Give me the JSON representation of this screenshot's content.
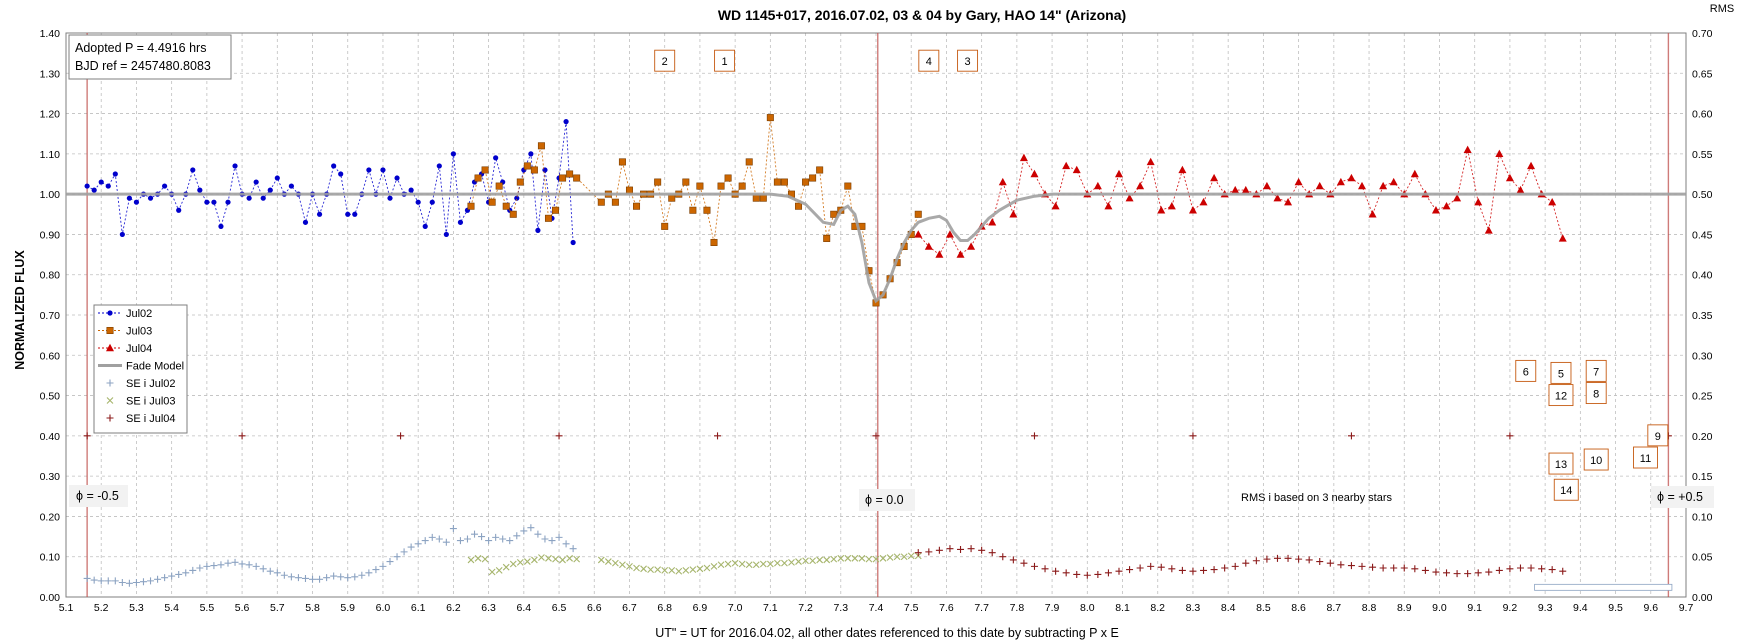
{
  "chart_data": {
    "type": "scatter",
    "title": "WD 1145+017, 2016.07.02, 03 & 04 by Gary, HAO 14\" (Arizona)",
    "xlabel": "UT\" = UT for 2016.04.02, all other dates referenced to this date by subtracting P x E",
    "ylabel": "NORMALIZED FLUX",
    "y2label": "RMS",
    "xlim": [
      5.1,
      9.7
    ],
    "ylim": [
      0,
      1.4
    ],
    "y2lim": [
      0,
      0.7
    ],
    "xticks": [
      "5.1",
      "5.2",
      "5.3",
      "5.4",
      "5.5",
      "5.6",
      "5.7",
      "5.8",
      "5.9",
      "6.0",
      "6.1",
      "6.2",
      "6.3",
      "6.4",
      "6.5",
      "6.6",
      "6.7",
      "6.8",
      "6.9",
      "7.0",
      "7.1",
      "7.2",
      "7.3",
      "7.4",
      "7.5",
      "7.6",
      "7.7",
      "7.8",
      "7.9",
      "8.0",
      "8.1",
      "8.2",
      "8.3",
      "8.4",
      "8.5",
      "8.6",
      "8.7",
      "8.8",
      "8.9",
      "9.0",
      "9.1",
      "9.2",
      "9.3",
      "9.4",
      "9.5",
      "9.6",
      "9.7"
    ],
    "yticks": [
      "0.00",
      "0.10",
      "0.20",
      "0.30",
      "0.40",
      "0.50",
      "0.60",
      "0.70",
      "0.80",
      "0.90",
      "1.00",
      "1.10",
      "1.20",
      "1.30",
      "1.40"
    ],
    "y2ticks": [
      "0.00",
      "0.05",
      "0.10",
      "0.15",
      "0.20",
      "0.25",
      "0.30",
      "0.35",
      "0.40",
      "0.45",
      "0.50",
      "0.55",
      "0.60",
      "0.65",
      "0.70"
    ],
    "grid": true,
    "legend_position": "left",
    "info_box": [
      "Adopted P = 4.4916 hrs",
      "BJD ref = 2457480.8083"
    ],
    "phase_labels": [
      {
        "x": 5.16,
        "text": "ϕ = -0.5"
      },
      {
        "x": 7.405,
        "text": "ϕ = 0.0"
      },
      {
        "x": 9.65,
        "text": "ϕ = +0.5"
      }
    ],
    "rms_note": "RMS i based on 3 nearby stars",
    "dip_labels": [
      {
        "text": "2",
        "x": 6.8,
        "y": 1.33
      },
      {
        "text": "1",
        "x": 6.97,
        "y": 1.33
      },
      {
        "text": "4",
        "x": 7.55,
        "y": 1.33
      },
      {
        "text": "3",
        "x": 7.66,
        "y": 1.33
      },
      {
        "text": "6",
        "x": 9.245,
        "y": 0.56
      },
      {
        "text": "5",
        "x": 9.345,
        "y": 0.555
      },
      {
        "text": "7",
        "x": 9.445,
        "y": 0.56
      },
      {
        "text": "12",
        "x": 9.345,
        "y": 0.5
      },
      {
        "text": "8",
        "x": 9.445,
        "y": 0.505
      },
      {
        "text": "9",
        "x": 9.62,
        "y": 0.4
      },
      {
        "text": "11",
        "x": 9.585,
        "y": 0.345
      },
      {
        "text": "10",
        "x": 9.445,
        "y": 0.34
      },
      {
        "text": "13",
        "x": 9.345,
        "y": 0.33
      },
      {
        "text": "14",
        "x": 9.36,
        "y": 0.265
      }
    ],
    "series": [
      {
        "name": "Jul02",
        "color": "#0000cc",
        "marker": "dot",
        "x": [
          5.16,
          5.18,
          5.2,
          5.22,
          5.24,
          5.26,
          5.28,
          5.3,
          5.32,
          5.34,
          5.36,
          5.38,
          5.4,
          5.42,
          5.44,
          5.46,
          5.48,
          5.5,
          5.52,
          5.54,
          5.56,
          5.58,
          5.6,
          5.62,
          5.64,
          5.66,
          5.68,
          5.7,
          5.72,
          5.74,
          5.76,
          5.78,
          5.8,
          5.82,
          5.84,
          5.86,
          5.88,
          5.9,
          5.92,
          5.94,
          5.96,
          5.98,
          6.0,
          6.02,
          6.04,
          6.06,
          6.08,
          6.1,
          6.12,
          6.14,
          6.16,
          6.18,
          6.2,
          6.22,
          6.24,
          6.26,
          6.28,
          6.3,
          6.32,
          6.34,
          6.36,
          6.38,
          6.4,
          6.42,
          6.44,
          6.46,
          6.48,
          6.5,
          6.52,
          6.54
        ],
        "y": [
          1.02,
          1.01,
          1.03,
          1.02,
          1.05,
          0.9,
          0.99,
          0.98,
          1.0,
          0.99,
          1.0,
          1.02,
          1.0,
          0.96,
          1.0,
          1.06,
          1.01,
          0.98,
          0.98,
          0.92,
          0.98,
          1.07,
          1.0,
          0.99,
          1.03,
          0.99,
          1.01,
          1.04,
          1.0,
          1.02,
          1.0,
          0.93,
          1.0,
          0.95,
          1.0,
          1.07,
          1.05,
          0.95,
          0.95,
          1.0,
          1.06,
          1.0,
          1.06,
          0.99,
          1.04,
          1.0,
          1.01,
          0.98,
          0.92,
          0.98,
          1.07,
          0.9,
          1.1,
          0.93,
          0.96,
          1.03,
          1.05,
          0.98,
          1.09,
          1.03,
          0.96,
          0.99,
          1.06,
          1.1,
          0.91,
          1.06,
          0.94,
          1.04,
          1.18,
          0.88
        ]
      },
      {
        "name": "Jul03",
        "color": "#cc6600",
        "marker": "square",
        "x": [
          6.25,
          6.27,
          6.29,
          6.31,
          6.33,
          6.35,
          6.37,
          6.39,
          6.41,
          6.43,
          6.45,
          6.47,
          6.49,
          6.51,
          6.53,
          6.55,
          6.62,
          6.64,
          6.66,
          6.68,
          6.7,
          6.72,
          6.74,
          6.76,
          6.78,
          6.8,
          6.82,
          6.84,
          6.86,
          6.88,
          6.9,
          6.92,
          6.94,
          6.96,
          6.98,
          7.0,
          7.02,
          7.04,
          7.06,
          7.08,
          7.1,
          7.12,
          7.14,
          7.16,
          7.18,
          7.2,
          7.22,
          7.24,
          7.26,
          7.28,
          7.3,
          7.32,
          7.34,
          7.36,
          7.38,
          7.4,
          7.42,
          7.44,
          7.46,
          7.48,
          7.5,
          7.52
        ],
        "y": [
          0.97,
          1.04,
          1.06,
          0.98,
          1.02,
          0.97,
          0.95,
          1.03,
          1.07,
          1.06,
          1.12,
          0.94,
          0.96,
          1.04,
          1.05,
          1.04,
          0.98,
          1.0,
          0.98,
          1.08,
          1.01,
          0.97,
          1.0,
          1.0,
          1.03,
          0.92,
          0.99,
          1.0,
          1.03,
          0.96,
          1.02,
          0.96,
          0.88,
          1.02,
          1.04,
          1.0,
          1.02,
          1.08,
          0.99,
          0.99,
          1.19,
          1.03,
          1.03,
          1.0,
          0.97,
          1.03,
          1.04,
          1.06,
          0.89,
          0.95,
          0.96,
          1.02,
          0.92,
          0.92,
          0.81,
          0.73,
          0.75,
          0.79,
          0.83,
          0.87,
          0.9,
          0.95
        ]
      },
      {
        "name": "Jul04",
        "color": "#cc0000",
        "marker": "triangle",
        "x": [
          7.52,
          7.55,
          7.58,
          7.61,
          7.64,
          7.67,
          7.7,
          7.73,
          7.76,
          7.79,
          7.82,
          7.85,
          7.88,
          7.91,
          7.94,
          7.97,
          8.0,
          8.03,
          8.06,
          8.09,
          8.12,
          8.15,
          8.18,
          8.21,
          8.24,
          8.27,
          8.3,
          8.33,
          8.36,
          8.39,
          8.42,
          8.45,
          8.48,
          8.51,
          8.54,
          8.57,
          8.6,
          8.63,
          8.66,
          8.69,
          8.72,
          8.75,
          8.78,
          8.81,
          8.84,
          8.87,
          8.9,
          8.93,
          8.96,
          8.99,
          9.02,
          9.05,
          9.08,
          9.11,
          9.14,
          9.17,
          9.2,
          9.23,
          9.26,
          9.29,
          9.32,
          9.35
        ],
        "y": [
          0.9,
          0.87,
          0.85,
          0.9,
          0.85,
          0.87,
          0.92,
          0.93,
          1.03,
          0.95,
          1.09,
          1.05,
          1.0,
          0.97,
          1.07,
          1.06,
          1.0,
          1.02,
          0.97,
          1.05,
          0.99,
          1.02,
          1.08,
          0.96,
          0.97,
          1.06,
          0.96,
          0.98,
          1.04,
          1.0,
          1.01,
          1.01,
          1.0,
          1.02,
          0.99,
          0.98,
          1.03,
          1.0,
          1.02,
          1.0,
          1.03,
          1.04,
          1.02,
          0.95,
          1.02,
          1.03,
          1.0,
          1.05,
          1.0,
          0.96,
          0.97,
          0.99,
          1.11,
          0.98,
          0.91,
          1.1,
          1.04,
          1.01,
          1.07,
          1.0,
          0.98,
          0.89
        ]
      },
      {
        "name": "Fade Model",
        "color": "#a0a0a0",
        "marker": "line",
        "x": [
          5.1,
          7.0,
          7.1,
          7.15,
          7.2,
          7.25,
          7.28,
          7.3,
          7.32,
          7.34,
          7.36,
          7.38,
          7.4,
          7.42,
          7.44,
          7.46,
          7.48,
          7.5,
          7.52,
          7.55,
          7.58,
          7.6,
          7.62,
          7.64,
          7.66,
          7.68,
          7.7,
          7.72,
          7.75,
          7.8,
          7.85,
          7.9,
          8.0,
          9.7
        ],
        "y": [
          1.0,
          1.0,
          1.0,
          0.995,
          0.975,
          0.93,
          0.925,
          0.96,
          0.97,
          0.95,
          0.88,
          0.78,
          0.735,
          0.75,
          0.79,
          0.84,
          0.88,
          0.91,
          0.93,
          0.94,
          0.945,
          0.935,
          0.905,
          0.885,
          0.885,
          0.9,
          0.92,
          0.94,
          0.96,
          0.985,
          0.995,
          1.0,
          1.0,
          1.0
        ]
      },
      {
        "name": "SE i Jul02",
        "color": "#8ca3c2",
        "marker": "plus",
        "axis": "y2",
        "x": [
          5.16,
          5.18,
          5.2,
          5.22,
          5.24,
          5.26,
          5.28,
          5.3,
          5.32,
          5.34,
          5.36,
          5.38,
          5.4,
          5.42,
          5.44,
          5.46,
          5.48,
          5.5,
          5.52,
          5.54,
          5.56,
          5.58,
          5.6,
          5.62,
          5.64,
          5.66,
          5.68,
          5.7,
          5.72,
          5.74,
          5.76,
          5.78,
          5.8,
          5.82,
          5.84,
          5.86,
          5.88,
          5.9,
          5.92,
          5.94,
          5.96,
          5.98,
          6.0,
          6.02,
          6.04,
          6.06,
          6.08,
          6.1,
          6.12,
          6.14,
          6.16,
          6.18,
          6.2,
          6.22,
          6.24,
          6.26,
          6.28,
          6.3,
          6.32,
          6.34,
          6.36,
          6.38,
          6.4,
          6.42,
          6.44,
          6.46,
          6.48,
          6.5,
          6.52,
          6.54
        ],
        "y": [
          0.023,
          0.021,
          0.02,
          0.02,
          0.02,
          0.018,
          0.017,
          0.018,
          0.019,
          0.02,
          0.022,
          0.024,
          0.026,
          0.028,
          0.03,
          0.033,
          0.036,
          0.038,
          0.039,
          0.04,
          0.042,
          0.043,
          0.041,
          0.04,
          0.038,
          0.035,
          0.032,
          0.03,
          0.027,
          0.025,
          0.024,
          0.023,
          0.022,
          0.022,
          0.024,
          0.026,
          0.025,
          0.024,
          0.025,
          0.027,
          0.03,
          0.034,
          0.038,
          0.044,
          0.05,
          0.056,
          0.062,
          0.066,
          0.07,
          0.074,
          0.072,
          0.068,
          0.085,
          0.07,
          0.072,
          0.078,
          0.075,
          0.07,
          0.074,
          0.072,
          0.07,
          0.076,
          0.082,
          0.086,
          0.078,
          0.072,
          0.07,
          0.074,
          0.066,
          0.06
        ]
      },
      {
        "name": "SE i Jul03",
        "color": "#a6b56c",
        "marker": "cross",
        "axis": "y2",
        "x": [
          6.25,
          6.27,
          6.29,
          6.31,
          6.33,
          6.35,
          6.37,
          6.39,
          6.41,
          6.43,
          6.45,
          6.47,
          6.49,
          6.51,
          6.53,
          6.55,
          6.62,
          6.64,
          6.66,
          6.68,
          6.7,
          6.72,
          6.74,
          6.76,
          6.78,
          6.8,
          6.82,
          6.84,
          6.86,
          6.88,
          6.9,
          6.92,
          6.94,
          6.96,
          6.98,
          7.0,
          7.02,
          7.04,
          7.06,
          7.08,
          7.1,
          7.12,
          7.14,
          7.16,
          7.18,
          7.2,
          7.22,
          7.24,
          7.26,
          7.28,
          7.3,
          7.32,
          7.34,
          7.36,
          7.38,
          7.4,
          7.42,
          7.44,
          7.46,
          7.48,
          7.5,
          7.52
        ],
        "y": [
          0.046,
          0.048,
          0.047,
          0.031,
          0.033,
          0.037,
          0.041,
          0.043,
          0.044,
          0.046,
          0.049,
          0.048,
          0.047,
          0.046,
          0.048,
          0.047,
          0.046,
          0.044,
          0.042,
          0.04,
          0.038,
          0.036,
          0.035,
          0.034,
          0.034,
          0.033,
          0.033,
          0.032,
          0.033,
          0.034,
          0.035,
          0.036,
          0.038,
          0.04,
          0.041,
          0.042,
          0.041,
          0.04,
          0.04,
          0.041,
          0.041,
          0.042,
          0.042,
          0.043,
          0.044,
          0.045,
          0.045,
          0.046,
          0.046,
          0.047,
          0.048,
          0.048,
          0.048,
          0.048,
          0.047,
          0.047,
          0.048,
          0.049,
          0.05,
          0.05,
          0.051,
          0.051
        ]
      },
      {
        "name": "SE i Jul04",
        "color": "#8b1a1a",
        "marker": "plus",
        "axis": "y2",
        "x": [
          7.52,
          7.55,
          7.58,
          7.61,
          7.64,
          7.67,
          7.7,
          7.73,
          7.76,
          7.79,
          7.82,
          7.85,
          7.88,
          7.91,
          7.94,
          7.97,
          8.0,
          8.03,
          8.06,
          8.09,
          8.12,
          8.15,
          8.18,
          8.21,
          8.24,
          8.27,
          8.3,
          8.33,
          8.36,
          8.39,
          8.42,
          8.45,
          8.48,
          8.51,
          8.54,
          8.57,
          8.6,
          8.63,
          8.66,
          8.69,
          8.72,
          8.75,
          8.78,
          8.81,
          8.84,
          8.87,
          8.9,
          8.93,
          8.96,
          8.99,
          9.02,
          9.05,
          9.08,
          9.11,
          9.14,
          9.17,
          9.2,
          9.23,
          9.26,
          9.29,
          9.32,
          9.35
        ],
        "y": [
          0.055,
          0.056,
          0.058,
          0.06,
          0.059,
          0.06,
          0.058,
          0.055,
          0.05,
          0.046,
          0.042,
          0.038,
          0.035,
          0.032,
          0.03,
          0.028,
          0.027,
          0.028,
          0.03,
          0.032,
          0.034,
          0.036,
          0.038,
          0.037,
          0.035,
          0.033,
          0.032,
          0.033,
          0.034,
          0.036,
          0.038,
          0.042,
          0.045,
          0.047,
          0.048,
          0.048,
          0.047,
          0.046,
          0.044,
          0.042,
          0.04,
          0.039,
          0.038,
          0.037,
          0.036,
          0.036,
          0.036,
          0.035,
          0.033,
          0.031,
          0.03,
          0.029,
          0.029,
          0.03,
          0.031,
          0.033,
          0.035,
          0.036,
          0.036,
          0.035,
          0.034,
          0.032
        ]
      }
    ],
    "ref_markers": {
      "color": "#8b1a1a",
      "y": 0.4,
      "x": [
        5.16,
        5.6,
        6.05,
        6.5,
        6.95,
        7.4,
        7.85,
        8.3,
        8.75,
        9.2,
        9.65
      ]
    },
    "se_bar": {
      "y": 0.012,
      "x_start": 9.27,
      "x_end": 9.66
    }
  }
}
